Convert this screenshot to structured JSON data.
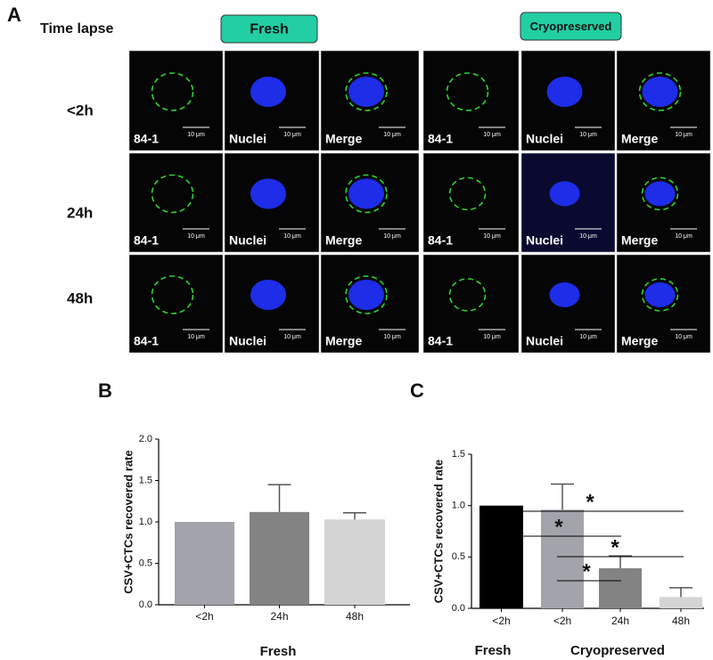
{
  "panel_a": {
    "label": "A",
    "time_label": "Time lapse",
    "groups": [
      "Fresh",
      "Cryopreserved"
    ],
    "rows": [
      "<2h",
      "24h",
      "48h"
    ],
    "channels": [
      "84-1",
      "Nuclei",
      "Merge"
    ],
    "scale_bar": "10 μm"
  },
  "chart_data": [
    {
      "type": "bar",
      "label": "B",
      "ylabel": "CSV+CTCs recovered rate",
      "xlabel": "Fresh",
      "categories": [
        "<2h",
        "24h",
        "48h"
      ],
      "values": [
        1.0,
        1.12,
        1.03
      ],
      "errors": [
        0,
        0.33,
        0.08
      ],
      "colors": [
        "#a3a3ab",
        "#838383",
        "#d4d4d4"
      ],
      "ylim": [
        0,
        2
      ],
      "yticks": [
        {
          "value": 0,
          "label": "0.0"
        },
        0.5,
        {
          "value": 1,
          "label": "1.0"
        },
        1.5,
        {
          "value": 2,
          "label": "2.0"
        }
      ]
    },
    {
      "type": "bar",
      "label": "C",
      "ylabel": "CSV+CTCs recovered rate",
      "categories": [
        "<2h",
        "<2h",
        "24h",
        "48h"
      ],
      "groups": [
        "Fresh",
        "Cryopreserved"
      ],
      "values": [
        1.0,
        0.96,
        0.39,
        0.11
      ],
      "errors": [
        0,
        0.25,
        0.12,
        0.09
      ],
      "colors": [
        "#000000",
        "#a3a3ab",
        "#838383",
        "#d4d4d4"
      ],
      "ylim": [
        0,
        1.5
      ],
      "yticks": [
        {
          "value": 0,
          "label": "0.0"
        },
        0.5,
        {
          "value": 1,
          "label": "1.0"
        },
        1.5
      ],
      "significance": [
        "*",
        "*",
        "*",
        "*"
      ]
    }
  ]
}
